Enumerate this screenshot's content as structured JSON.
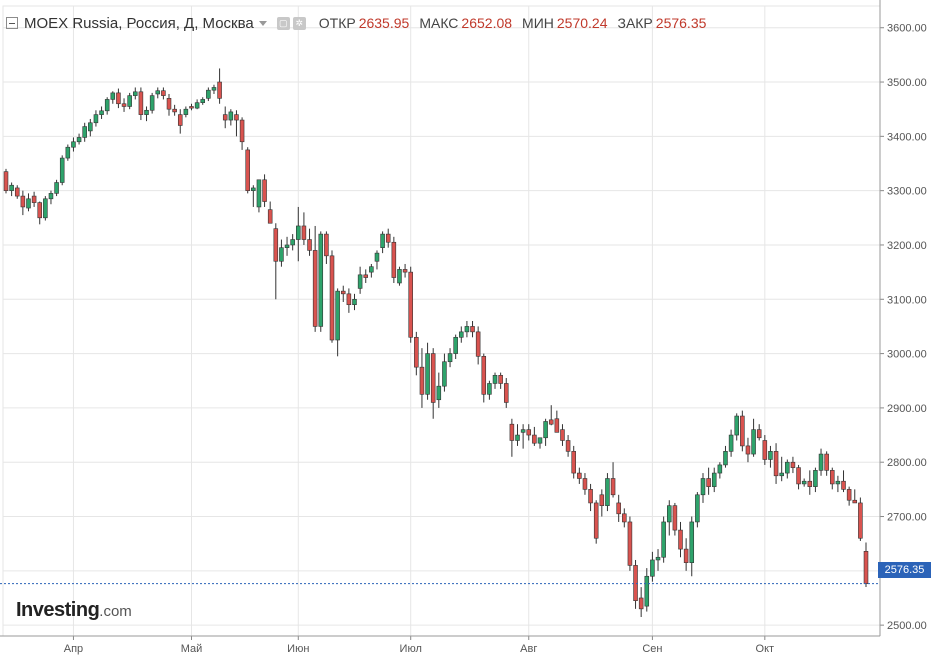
{
  "header": {
    "title": "MOEX Russia, Россия, Д, Москва",
    "open_label": "ОТКР",
    "open_value": "2635.95",
    "high_label": "МАКС",
    "high_value": "2652.08",
    "low_label": "МИН",
    "low_value": "2570.24",
    "close_label": "ЗАКР",
    "close_value": "2576.35"
  },
  "logo": {
    "main": "Investing",
    "suffix": ".com"
  },
  "last_price_label": "2576.35",
  "colors": {
    "up": "#2ea36b",
    "down": "#d9534f",
    "grid": "#e6e6e6",
    "axis": "#555555",
    "last_line": "#2b63b8"
  },
  "icons": [
    "collapse-icon",
    "dropdown-caret-icon",
    "settings-icon",
    "gear-icon"
  ],
  "chart_data": {
    "type": "candlestick",
    "title": "MOEX Russia, Россия, Д, Москва",
    "ylim": [
      2480,
      3640
    ],
    "y_ticks": [
      2500,
      2600,
      2700,
      2800,
      2900,
      3000,
      3100,
      3200,
      3300,
      3400,
      3500,
      3600
    ],
    "y_tick_labels": [
      "2500.00",
      "2600.00",
      "2700.00",
      "2800.00",
      "2900.00",
      "3000.00",
      "3100.00",
      "3200.00",
      "3300.00",
      "3400.00",
      "3500.00",
      "3600.00"
    ],
    "x_labels": [
      {
        "label": "Апр",
        "index": 12
      },
      {
        "label": "Май",
        "index": 33
      },
      {
        "label": "Июн",
        "index": 52
      },
      {
        "label": "Июл",
        "index": 72
      },
      {
        "label": "Авг",
        "index": 93
      },
      {
        "label": "Сен",
        "index": 115
      },
      {
        "label": "Окт",
        "index": 135
      }
    ],
    "last_price": 2576.35,
    "grid": true,
    "candles": [
      [
        3335,
        3340,
        3295,
        3300
      ],
      [
        3300,
        3315,
        3290,
        3310
      ],
      [
        3305,
        3310,
        3285,
        3290
      ],
      [
        3290,
        3300,
        3255,
        3270
      ],
      [
        3268,
        3295,
        3262,
        3285
      ],
      [
        3290,
        3298,
        3270,
        3278
      ],
      [
        3278,
        3280,
        3238,
        3250
      ],
      [
        3250,
        3290,
        3245,
        3285
      ],
      [
        3285,
        3300,
        3275,
        3295
      ],
      [
        3295,
        3320,
        3290,
        3315
      ],
      [
        3315,
        3365,
        3310,
        3360
      ],
      [
        3360,
        3385,
        3355,
        3380
      ],
      [
        3380,
        3398,
        3372,
        3390
      ],
      [
        3390,
        3405,
        3385,
        3398
      ],
      [
        3398,
        3425,
        3390,
        3418
      ],
      [
        3410,
        3432,
        3400,
        3425
      ],
      [
        3425,
        3448,
        3418,
        3440
      ],
      [
        3440,
        3455,
        3432,
        3447
      ],
      [
        3447,
        3472,
        3440,
        3468
      ],
      [
        3468,
        3483,
        3460,
        3480
      ],
      [
        3480,
        3488,
        3452,
        3460
      ],
      [
        3460,
        3470,
        3445,
        3455
      ],
      [
        3455,
        3480,
        3450,
        3475
      ],
      [
        3475,
        3490,
        3468,
        3482
      ],
      [
        3482,
        3490,
        3430,
        3440
      ],
      [
        3440,
        3455,
        3428,
        3448
      ],
      [
        3448,
        3480,
        3442,
        3475
      ],
      [
        3478,
        3490,
        3470,
        3484
      ],
      [
        3484,
        3490,
        3468,
        3475
      ],
      [
        3470,
        3478,
        3438,
        3450
      ],
      [
        3450,
        3458,
        3438,
        3445
      ],
      [
        3440,
        3450,
        3405,
        3420
      ],
      [
        3440,
        3455,
        3435,
        3450
      ],
      [
        3455,
        3460,
        3448,
        3452
      ],
      [
        3452,
        3468,
        3450,
        3462
      ],
      [
        3462,
        3472,
        3458,
        3468
      ],
      [
        3470,
        3490,
        3465,
        3485
      ],
      [
        3485,
        3495,
        3478,
        3490
      ],
      [
        3500,
        3525,
        3460,
        3470
      ],
      [
        3440,
        3455,
        3415,
        3430
      ],
      [
        3430,
        3450,
        3420,
        3445
      ],
      [
        3440,
        3448,
        3400,
        3430
      ],
      [
        3430,
        3435,
        3375,
        3390
      ],
      [
        3375,
        3380,
        3295,
        3300
      ],
      [
        3300,
        3310,
        3270,
        3305
      ],
      [
        3270,
        3320,
        3260,
        3320
      ],
      [
        3320,
        3330,
        3270,
        3280
      ],
      [
        3265,
        3280,
        3240,
        3240
      ],
      [
        3230,
        3240,
        3100,
        3170
      ],
      [
        3170,
        3210,
        3160,
        3195
      ],
      [
        3195,
        3215,
        3180,
        3200
      ],
      [
        3200,
        3220,
        3190,
        3210
      ],
      [
        3210,
        3270,
        3170,
        3235
      ],
      [
        3235,
        3260,
        3200,
        3210
      ],
      [
        3210,
        3230,
        3180,
        3190
      ],
      [
        3190,
        3235,
        3040,
        3050
      ],
      [
        3050,
        3225,
        3040,
        3220
      ],
      [
        3220,
        3225,
        3165,
        3180
      ],
      [
        3180,
        3190,
        3020,
        3025
      ],
      [
        3025,
        3120,
        2995,
        3115
      ],
      [
        3115,
        3125,
        3095,
        3110
      ],
      [
        3110,
        3120,
        3075,
        3090
      ],
      [
        3090,
        3110,
        3080,
        3100
      ],
      [
        3120,
        3160,
        3110,
        3145
      ],
      [
        3145,
        3155,
        3130,
        3140
      ],
      [
        3150,
        3165,
        3140,
        3160
      ],
      [
        3170,
        3190,
        3155,
        3185
      ],
      [
        3195,
        3225,
        3185,
        3220
      ],
      [
        3220,
        3230,
        3195,
        3205
      ],
      [
        3205,
        3215,
        3130,
        3140
      ],
      [
        3130,
        3160,
        3125,
        3155
      ],
      [
        3155,
        3165,
        3140,
        3150
      ],
      [
        3150,
        3160,
        3020,
        3030
      ],
      [
        3030,
        3040,
        2960,
        2975
      ],
      [
        2975,
        3010,
        2900,
        2925
      ],
      [
        2925,
        3020,
        2915,
        3000
      ],
      [
        3000,
        3010,
        2880,
        2910
      ],
      [
        2915,
        2965,
        2900,
        2940
      ],
      [
        2940,
        3000,
        2930,
        2985
      ],
      [
        2985,
        3010,
        2975,
        3000
      ],
      [
        3000,
        3035,
        2990,
        3030
      ],
      [
        3030,
        3050,
        3020,
        3040
      ],
      [
        3040,
        3060,
        3030,
        3050
      ],
      [
        3050,
        3060,
        3030,
        3040
      ],
      [
        3040,
        3050,
        2980,
        2995
      ],
      [
        2995,
        3000,
        2910,
        2925
      ],
      [
        2925,
        2950,
        2915,
        2945
      ],
      [
        2945,
        2965,
        2935,
        2960
      ],
      [
        2960,
        2965,
        2935,
        2945
      ],
      [
        2945,
        2955,
        2900,
        2910
      ],
      [
        2870,
        2880,
        2810,
        2840
      ],
      [
        2840,
        2870,
        2830,
        2850
      ],
      [
        2855,
        2870,
        2825,
        2860
      ],
      [
        2860,
        2870,
        2840,
        2850
      ],
      [
        2850,
        2865,
        2830,
        2835
      ],
      [
        2835,
        2845,
        2825,
        2845
      ],
      [
        2845,
        2880,
        2830,
        2875
      ],
      [
        2878,
        2905,
        2868,
        2870
      ],
      [
        2880,
        2895,
        2860,
        2855
      ],
      [
        2860,
        2870,
        2830,
        2840
      ],
      [
        2840,
        2850,
        2810,
        2820
      ],
      [
        2820,
        2830,
        2770,
        2780
      ],
      [
        2780,
        2790,
        2760,
        2770
      ],
      [
        2770,
        2780,
        2740,
        2750
      ],
      [
        2750,
        2760,
        2710,
        2725
      ],
      [
        2725,
        2730,
        2650,
        2660
      ],
      [
        2740,
        2750,
        2700,
        2720
      ],
      [
        2720,
        2780,
        2710,
        2770
      ],
      [
        2770,
        2800,
        2735,
        2740
      ],
      [
        2725,
        2740,
        2690,
        2705
      ],
      [
        2705,
        2715,
        2680,
        2690
      ],
      [
        2690,
        2700,
        2600,
        2610
      ],
      [
        2610,
        2620,
        2530,
        2545
      ],
      [
        2550,
        2570,
        2515,
        2530
      ],
      [
        2535,
        2605,
        2525,
        2590
      ],
      [
        2590,
        2635,
        2580,
        2620
      ],
      [
        2620,
        2640,
        2600,
        2625
      ],
      [
        2625,
        2700,
        2615,
        2690
      ],
      [
        2690,
        2730,
        2665,
        2720
      ],
      [
        2720,
        2725,
        2665,
        2675
      ],
      [
        2675,
        2690,
        2625,
        2640
      ],
      [
        2640,
        2660,
        2600,
        2615
      ],
      [
        2615,
        2700,
        2590,
        2690
      ],
      [
        2690,
        2745,
        2680,
        2740
      ],
      [
        2740,
        2780,
        2725,
        2770
      ],
      [
        2770,
        2790,
        2740,
        2755
      ],
      [
        2755,
        2790,
        2745,
        2780
      ],
      [
        2780,
        2800,
        2770,
        2795
      ],
      [
        2795,
        2830,
        2790,
        2820
      ],
      [
        2820,
        2860,
        2810,
        2850
      ],
      [
        2850,
        2890,
        2840,
        2885
      ],
      [
        2885,
        2895,
        2820,
        2830
      ],
      [
        2830,
        2845,
        2800,
        2815
      ],
      [
        2815,
        2880,
        2810,
        2860
      ],
      [
        2860,
        2870,
        2840,
        2845
      ],
      [
        2840,
        2850,
        2795,
        2805
      ],
      [
        2805,
        2830,
        2790,
        2820
      ],
      [
        2820,
        2835,
        2760,
        2775
      ],
      [
        2775,
        2810,
        2765,
        2780
      ],
      [
        2780,
        2805,
        2770,
        2800
      ],
      [
        2800,
        2810,
        2780,
        2790
      ],
      [
        2790,
        2795,
        2750,
        2760
      ],
      [
        2760,
        2770,
        2755,
        2765
      ],
      [
        2765,
        2785,
        2740,
        2755
      ],
      [
        2755,
        2790,
        2745,
        2785
      ],
      [
        2785,
        2825,
        2775,
        2815
      ],
      [
        2815,
        2820,
        2775,
        2785
      ],
      [
        2785,
        2790,
        2750,
        2760
      ],
      [
        2760,
        2775,
        2745,
        2765
      ],
      [
        2765,
        2785,
        2745,
        2750
      ],
      [
        2750,
        2755,
        2720,
        2730
      ],
      [
        2730,
        2750,
        2725,
        2725
      ],
      [
        2725,
        2735,
        2655,
        2660
      ],
      [
        2635.95,
        2652.08,
        2570.24,
        2576.35
      ]
    ]
  }
}
